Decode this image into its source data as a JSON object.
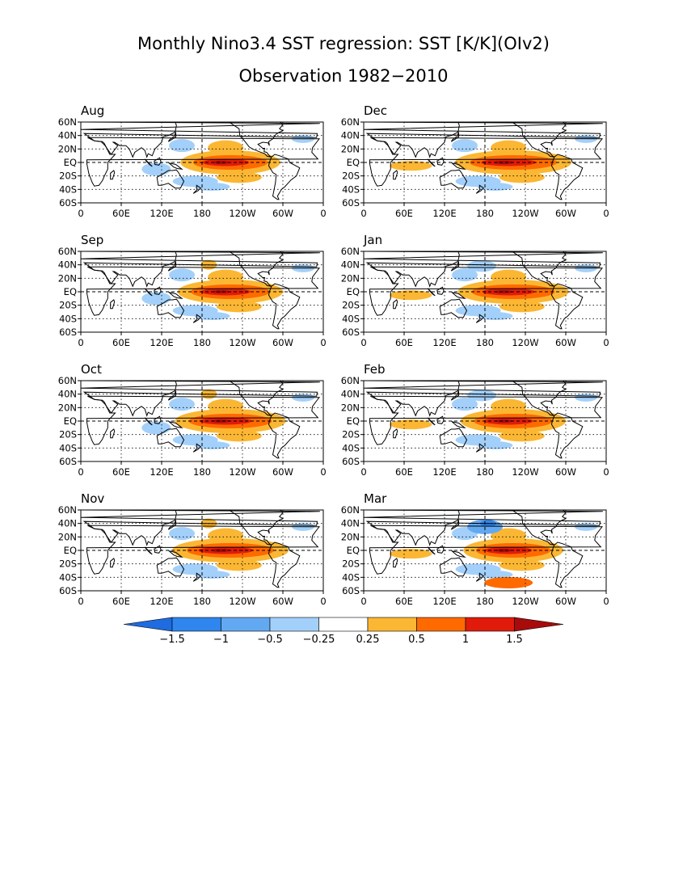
{
  "title": {
    "line1": "Monthly Nino3.4 SST regression: SST [K/K](OIv2)",
    "line2": "Observation 1982−2010"
  },
  "axes": {
    "lat_ticks": [
      "60N",
      "40N",
      "20N",
      "EQ",
      "20S",
      "40S",
      "60S"
    ],
    "lon_ticks": [
      "0",
      "60E",
      "120E",
      "180",
      "120W",
      "60W",
      "0"
    ],
    "lat_range": [
      -60,
      60
    ],
    "lon_range": [
      0,
      360
    ],
    "grid": true
  },
  "panels": [
    {
      "id": "aug",
      "label": "Aug",
      "column": "left",
      "row": 0,
      "warm_strength": 0.85,
      "indian_ocean": "cool",
      "north_pacific": "weak"
    },
    {
      "id": "sep",
      "label": "Sep",
      "column": "left",
      "row": 1,
      "warm_strength": 0.9,
      "indian_ocean": "cool",
      "north_pacific": "moderate"
    },
    {
      "id": "oct",
      "label": "Oct",
      "column": "left",
      "row": 2,
      "warm_strength": 0.95,
      "indian_ocean": "cool",
      "north_pacific": "moderate"
    },
    {
      "id": "nov",
      "label": "Nov",
      "column": "left",
      "row": 3,
      "warm_strength": 1.0,
      "indian_ocean": "weak",
      "north_pacific": "moderate"
    },
    {
      "id": "dec",
      "label": "Dec",
      "column": "right",
      "row": 0,
      "warm_strength": 1.0,
      "indian_ocean": "warm",
      "north_pacific": "weak"
    },
    {
      "id": "jan",
      "label": "Jan",
      "column": "right",
      "row": 1,
      "warm_strength": 0.95,
      "indian_ocean": "warm",
      "north_pacific": "cool"
    },
    {
      "id": "feb",
      "label": "Feb",
      "column": "right",
      "row": 2,
      "warm_strength": 0.9,
      "indian_ocean": "warm",
      "north_pacific": "cool"
    },
    {
      "id": "mar",
      "label": "Mar",
      "column": "right",
      "row": 3,
      "warm_strength": 0.85,
      "indian_ocean": "warm",
      "north_pacific": "strong-cool"
    }
  ],
  "colorbar": {
    "labels": [
      "−1.5",
      "−1",
      "−0.5",
      "−0.25",
      "0.25",
      "0.5",
      "1",
      "1.5"
    ],
    "levels": [
      -1.5,
      -1,
      -0.5,
      -0.25,
      0.25,
      0.5,
      1,
      1.5
    ],
    "colors": [
      "#1f6be0",
      "#2f86ee",
      "#63a9f2",
      "#a3d0fa",
      "#ffffff",
      "#fbb733",
      "#ff6a00",
      "#e01b0b",
      "#a80b0b"
    ]
  }
}
